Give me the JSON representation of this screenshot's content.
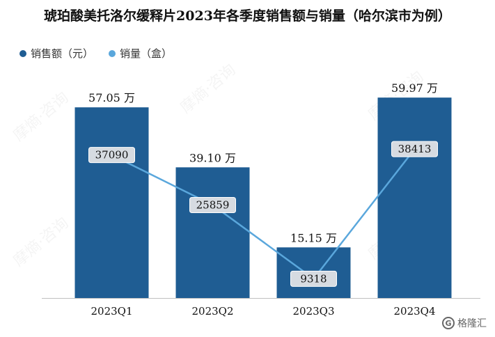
{
  "title": "琥珀酸美托洛尔缓释片2023年各季度销售额与销量（哈尔滨市为例）",
  "watermark": "摩熵·咨询",
  "brand": "格隆汇",
  "colors": {
    "bar": "#1f5d93",
    "line": "#5aa7dc",
    "badge": "#d6dbe1"
  },
  "chart_data": {
    "type": "bar",
    "categories": [
      "2023Q1",
      "2023Q2",
      "2023Q3",
      "2023Q4"
    ],
    "legend_placement": "top-left",
    "series": [
      {
        "name": "销售额（元）",
        "type": "bar",
        "values": [
          57.05,
          39.1,
          15.15,
          59.97
        ],
        "labels": [
          "57.05 万",
          "39.10 万",
          "15.15 万",
          "59.97 万"
        ]
      },
      {
        "name": "销量（盒）",
        "type": "line",
        "values": [
          37090,
          25859,
          9318,
          38413
        ],
        "labels": [
          "37090",
          "25859",
          "9318",
          "38413"
        ]
      }
    ],
    "bar_axis": {
      "min": 0,
      "max": 60
    },
    "line_axis": {
      "min": 5000,
      "max": 50000
    },
    "grid": false
  }
}
